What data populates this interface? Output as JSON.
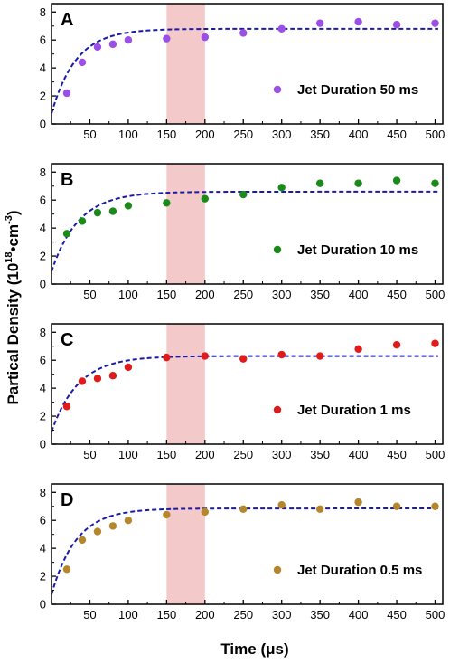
{
  "ylabel": "Partical Density (10",
  "ylabel_exp": "18",
  "ylabel_mid": "•cm",
  "ylabel_exp2": "-3",
  "ylabel_end": ")",
  "xlabel": "Time (μs)",
  "chart_data": [
    {
      "type": "scatter",
      "panel": "A",
      "legend": "Jet Duration 50 ms",
      "color": "#9b4fe6",
      "fit_color": "#1a1aaa",
      "shaded_band": [
        150,
        200
      ],
      "shade_color": "#f3c9c9",
      "xlim": [
        0,
        510
      ],
      "ylim": [
        0,
        8.6
      ],
      "xticks": [
        50,
        100,
        150,
        200,
        250,
        300,
        350,
        400,
        450,
        500
      ],
      "yticks": [
        0,
        2,
        4,
        6,
        8
      ],
      "x": [
        20,
        40,
        60,
        80,
        100,
        150,
        200,
        250,
        300,
        350,
        400,
        450,
        500
      ],
      "y": [
        2.2,
        4.4,
        5.5,
        5.7,
        6.0,
        6.1,
        6.2,
        6.5,
        6.8,
        7.2,
        7.3,
        7.1,
        7.2
      ],
      "fit": {
        "a": 6.8,
        "b": 0.75,
        "tau": 32
      }
    },
    {
      "type": "scatter",
      "panel": "B",
      "legend": "Jet Duration 10 ms",
      "color": "#1a8a1a",
      "fit_color": "#1a1aaa",
      "shaded_band": [
        150,
        200
      ],
      "shade_color": "#f3c9c9",
      "xlim": [
        0,
        510
      ],
      "ylim": [
        0,
        8.6
      ],
      "xticks": [
        50,
        100,
        150,
        200,
        250,
        300,
        350,
        400,
        450,
        500
      ],
      "yticks": [
        0,
        2,
        4,
        6,
        8
      ],
      "x": [
        20,
        40,
        60,
        80,
        100,
        150,
        200,
        250,
        300,
        350,
        400,
        450,
        500
      ],
      "y": [
        3.6,
        4.5,
        5.1,
        5.2,
        5.6,
        5.8,
        6.1,
        6.4,
        6.9,
        7.2,
        7.2,
        7.4,
        7.2
      ],
      "fit": {
        "a": 6.6,
        "b": 0.9,
        "tau": 35
      }
    },
    {
      "type": "scatter",
      "panel": "C",
      "legend": "Jet Duration 1 ms",
      "color": "#e01b1b",
      "fit_color": "#1a1aaa",
      "shaded_band": [
        150,
        200
      ],
      "shade_color": "#f3c9c9",
      "xlim": [
        0,
        510
      ],
      "ylim": [
        0,
        8.6
      ],
      "xticks": [
        50,
        100,
        150,
        200,
        250,
        300,
        350,
        400,
        450,
        500
      ],
      "yticks": [
        0,
        2,
        4,
        6,
        8
      ],
      "x": [
        20,
        40,
        60,
        80,
        100,
        150,
        200,
        250,
        300,
        350,
        400,
        450,
        500
      ],
      "y": [
        2.7,
        4.5,
        4.7,
        4.9,
        5.5,
        6.2,
        6.3,
        6.1,
        6.4,
        6.3,
        6.8,
        7.1,
        7.2
      ],
      "fit": {
        "a": 6.3,
        "b": 0.9,
        "tau": 35
      }
    },
    {
      "type": "scatter",
      "panel": "D",
      "legend": "Jet Duration 0.5 ms",
      "color": "#b5862b",
      "fit_color": "#1a1aaa",
      "shaded_band": [
        150,
        200
      ],
      "shade_color": "#f3c9c9",
      "xlim": [
        0,
        510
      ],
      "ylim": [
        0,
        8.6
      ],
      "xticks": [
        50,
        100,
        150,
        200,
        250,
        300,
        350,
        400,
        450,
        500
      ],
      "yticks": [
        0,
        2,
        4,
        6,
        8
      ],
      "x": [
        20,
        40,
        60,
        80,
        100,
        150,
        200,
        250,
        300,
        350,
        400,
        450,
        500
      ],
      "y": [
        2.5,
        4.6,
        5.2,
        5.6,
        6.0,
        6.4,
        6.6,
        6.8,
        7.1,
        6.8,
        7.3,
        7.0,
        7.0
      ],
      "fit": {
        "a": 6.85,
        "b": 0.7,
        "tau": 32
      }
    }
  ]
}
